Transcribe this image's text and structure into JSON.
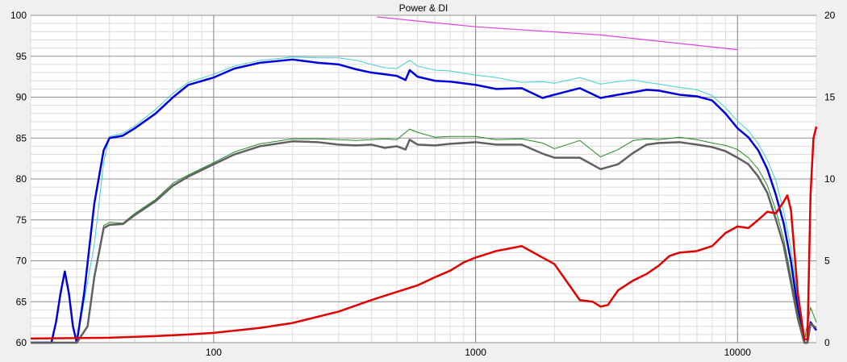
{
  "chart_data": {
    "type": "line",
    "title": "Power & DI",
    "x_scale": "log",
    "xlim": [
      20,
      20000
    ],
    "ylim_left": [
      60,
      100
    ],
    "ylim_right": [
      0,
      20
    ],
    "x_tick_labels": [
      {
        "value": 100,
        "label": "100"
      },
      {
        "value": 1000,
        "label": "1000"
      },
      {
        "value": 10000,
        "label": "10000"
      }
    ],
    "y_left_ticks": [
      "60",
      "65",
      "70",
      "75",
      "80",
      "85",
      "90",
      "95",
      "100"
    ],
    "y_right_ticks": [
      "0",
      "5",
      "10",
      "15",
      "20"
    ],
    "grid": true,
    "series": [
      {
        "color": "#40d0d8",
        "width": 1,
        "axis": "left",
        "x": [
          20,
          30,
          35,
          38,
          40,
          45,
          50,
          60,
          70,
          80,
          100,
          120,
          150,
          200,
          250,
          300,
          350,
          400,
          450,
          500,
          560,
          600,
          700,
          800,
          1000,
          1200,
          1500,
          1800,
          2000,
          2500,
          3000,
          3500,
          4000,
          4500,
          5000,
          6000,
          7000,
          8000,
          9000,
          10000,
          11000,
          12000,
          13000,
          14000,
          15000,
          16000,
          17000,
          18000,
          19000,
          20000
        ],
        "y": [
          60,
          60,
          72,
          82,
          85.2,
          85.6,
          86.5,
          88.5,
          90.5,
          91.8,
          92.8,
          93.8,
          94.5,
          94.9,
          94.8,
          94.8,
          94.5,
          94,
          93.6,
          93.5,
          94.5,
          93.8,
          93.3,
          93.2,
          92.7,
          92.4,
          91.8,
          91.9,
          91.7,
          92.4,
          91.6,
          91.9,
          92.1,
          91.8,
          91.6,
          91.2,
          90.9,
          90.2,
          88.7,
          87.1,
          85.9,
          84.3,
          82.3,
          79.8,
          76.1,
          71.5,
          65.2,
          60.3,
          62.4,
          61.5
        ]
      },
      {
        "color": "#0000dd",
        "width": 2.5,
        "axis": "left",
        "x": [
          20,
          22,
          24,
          25,
          26,
          27,
          28,
          29,
          30,
          32,
          35,
          38,
          40,
          45,
          50,
          60,
          70,
          80,
          100,
          120,
          150,
          200,
          250,
          300,
          350,
          400,
          450,
          500,
          540,
          560,
          600,
          700,
          800,
          1000,
          1200,
          1500,
          1800,
          2000,
          2500,
          3000,
          3500,
          4000,
          4500,
          5000,
          6000,
          7000,
          8000,
          9000,
          10000,
          11000,
          12000,
          13000,
          14000,
          15000,
          16000,
          17000,
          18000,
          18500,
          19000,
          20000
        ],
        "y": [
          60,
          60,
          60,
          62.5,
          66,
          68.7,
          66,
          62,
          60,
          66,
          77,
          83.5,
          85,
          85.3,
          86.2,
          88,
          90,
          91.5,
          92.4,
          93.5,
          94.2,
          94.6,
          94.2,
          94,
          93.4,
          93,
          92.8,
          92.6,
          92.1,
          93.3,
          92.5,
          92,
          91.9,
          91.5,
          91,
          91.1,
          89.9,
          90.3,
          91.1,
          89.9,
          90.3,
          90.6,
          90.9,
          90.8,
          90.3,
          90.1,
          89.6,
          88,
          86.2,
          85.1,
          83.5,
          81.2,
          78.1,
          74.6,
          69.9,
          64.1,
          60,
          60,
          62.5,
          61.5
        ]
      },
      {
        "color": "#228b22",
        "width": 1,
        "axis": "left",
        "x": [
          20,
          30,
          33,
          35,
          38,
          40,
          45,
          50,
          60,
          70,
          80,
          100,
          120,
          150,
          200,
          250,
          300,
          350,
          400,
          450,
          500,
          560,
          600,
          700,
          800,
          1000,
          1200,
          1500,
          1800,
          2000,
          2500,
          3000,
          3500,
          4000,
          4500,
          5000,
          6000,
          7000,
          8000,
          9000,
          10000,
          11000,
          12000,
          13000,
          14000,
          15000,
          16000,
          17000,
          18000,
          19000,
          20000
        ],
        "y": [
          60,
          60,
          62,
          68,
          74.3,
          74.7,
          74.6,
          75.8,
          77.5,
          79.5,
          80.5,
          82,
          83.3,
          84.3,
          84.9,
          84.9,
          84.8,
          84.7,
          84.8,
          84.9,
          84.8,
          86.1,
          85.7,
          85.1,
          85.2,
          85.2,
          84.8,
          84.9,
          84.4,
          83.7,
          84.7,
          82.7,
          83.6,
          84.7,
          84.9,
          84.8,
          85.1,
          84.8,
          84.4,
          84.1,
          83.6,
          82.6,
          81.2,
          79.2,
          76.2,
          72.7,
          68.1,
          63.5,
          60.3,
          64.3,
          62.5
        ]
      },
      {
        "color": "#606060",
        "width": 2.5,
        "axis": "left",
        "x": [
          20,
          30,
          33,
          35,
          38,
          40,
          45,
          50,
          60,
          70,
          80,
          100,
          120,
          150,
          200,
          250,
          300,
          350,
          400,
          450,
          500,
          540,
          560,
          600,
          700,
          800,
          1000,
          1200,
          1500,
          1800,
          2000,
          2500,
          3000,
          3500,
          4000,
          4500,
          5000,
          6000,
          7000,
          8000,
          9000,
          10000,
          11000,
          12000,
          13000,
          14000,
          15000,
          16000,
          17000,
          18000,
          18500,
          19000,
          20000
        ],
        "y": [
          60,
          60,
          62,
          68,
          74,
          74.4,
          74.5,
          75.6,
          77.3,
          79.2,
          80.3,
          81.8,
          83,
          84,
          84.6,
          84.5,
          84.2,
          84.1,
          84.2,
          83.8,
          84,
          83.6,
          84.8,
          84.2,
          84.1,
          84.3,
          84.5,
          84.2,
          84.2,
          83.1,
          82.6,
          82.6,
          81.2,
          81.8,
          83.2,
          84.2,
          84.4,
          84.5,
          84.2,
          83.9,
          83.4,
          82.6,
          81.8,
          80.3,
          78.3,
          75.1,
          71.9,
          67.3,
          62.9,
          60,
          60,
          62.3,
          61.8
        ]
      },
      {
        "color": "#e00000",
        "width": 2.5,
        "axis": "right",
        "x": [
          20,
          40,
          60,
          80,
          100,
          150,
          200,
          300,
          400,
          500,
          600,
          700,
          800,
          900,
          1000,
          1200,
          1500,
          1800,
          2000,
          2500,
          2800,
          3000,
          3200,
          3500,
          4000,
          4500,
          5000,
          5500,
          6000,
          7000,
          8000,
          9000,
          10000,
          11000,
          12000,
          13000,
          14000,
          15000,
          15500,
          16000,
          17000,
          18000,
          18500,
          19000,
          19500,
          20000
        ],
        "y": [
          0.25,
          0.3,
          0.4,
          0.5,
          0.6,
          0.9,
          1.2,
          1.9,
          2.6,
          3.1,
          3.5,
          4,
          4.4,
          4.9,
          5.2,
          5.6,
          5.9,
          5.2,
          4.8,
          2.6,
          2.5,
          2.2,
          2.3,
          3.2,
          3.8,
          4.2,
          4.7,
          5.3,
          5.5,
          5.6,
          5.9,
          6.7,
          7.1,
          7.0,
          7.5,
          8.0,
          7.9,
          8.6,
          9,
          8.1,
          3.0,
          0.2,
          0.2,
          9,
          12.5,
          13.2
        ]
      },
      {
        "color": "#e040e0",
        "width": 1.2,
        "axis": "right",
        "x": [
          420,
          1000,
          3000,
          10000
        ],
        "y": [
          19.9,
          19.3,
          18.8,
          17.9
        ]
      }
    ]
  }
}
